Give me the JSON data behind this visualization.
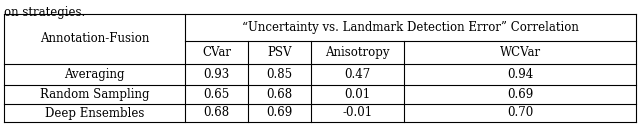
{
  "caption_text": "on strategies.",
  "header_top": "“Uncertainty vs. Landmark Detection Error” Correlation",
  "header_sub": [
    "CVar",
    "PSV",
    "Anisotropy",
    "WCVar"
  ],
  "col0_header": "Annotation-Fusion",
  "rows": [
    [
      "Averaging",
      "0.93",
      "0.85",
      "0.47",
      "0.94"
    ],
    [
      "Random Sampling",
      "0.65",
      "0.68",
      "0.01",
      "0.69"
    ],
    [
      "Deep Ensembles",
      "0.68",
      "0.69",
      "-0.01",
      "0.70"
    ]
  ],
  "bg_color": "#ffffff",
  "line_color": "#000000",
  "font_size": 8.5,
  "font_family": "DejaVu Serif"
}
